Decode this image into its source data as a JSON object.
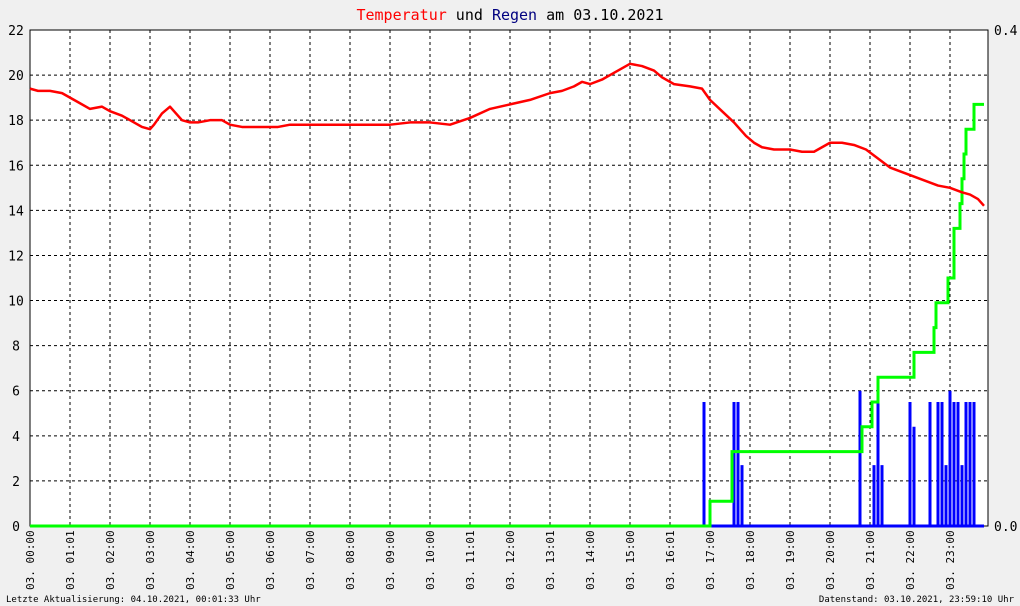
{
  "chart_data": {
    "type": "line",
    "title_parts": [
      {
        "text": "Temperatur",
        "color": "#ff0000"
      },
      {
        "text": " und ",
        "color": "#000000"
      },
      {
        "text": "Regen",
        "color": "#000080"
      },
      {
        "text": " am 03.10.2021",
        "color": "#000000"
      }
    ],
    "left_axis": {
      "ylim": [
        0,
        22
      ],
      "ticks": [
        "0",
        "2",
        "4",
        "6",
        "8",
        "10",
        "12",
        "14",
        "16",
        "18",
        "20",
        "22"
      ]
    },
    "right_axis": {
      "ylim": [
        0,
        0.4
      ],
      "ticks": [
        "0.0",
        "0.4"
      ]
    },
    "x_tick_labels": [
      "03. 00:00",
      "03. 01:01",
      "03. 02:00",
      "03. 03:00",
      "03. 04:00",
      "03. 05:00",
      "03. 06:00",
      "03. 07:00",
      "03. 08:00",
      "03. 09:00",
      "03. 10:00",
      "03. 11:01",
      "03. 12:00",
      "03. 13:01",
      "03. 14:00",
      "03. 15:00",
      "03. 16:01",
      "03. 17:00",
      "03. 18:00",
      "03. 19:00",
      "03. 20:00",
      "03. 21:00",
      "03. 22:00",
      "03. 23:00"
    ],
    "grid": true,
    "colors": {
      "temperature": "#ff0000",
      "rain_rate": "#0000ff",
      "rain_cumulative": "#00ff00",
      "grid": "#000000"
    },
    "temperature": {
      "x": [
        0,
        0.2,
        0.5,
        0.8,
        1.0,
        1.2,
        1.5,
        1.8,
        2.0,
        2.3,
        2.6,
        2.8,
        3.0,
        3.1,
        3.3,
        3.5,
        3.7,
        3.8,
        4.0,
        4.2,
        4.5,
        4.8,
        5.0,
        5.3,
        5.6,
        5.9,
        6.2,
        6.5,
        6.8,
        7.0,
        7.5,
        8.0,
        8.5,
        9.0,
        9.5,
        10.0,
        10.5,
        11.0,
        11.5,
        12.0,
        12.5,
        13.0,
        13.3,
        13.6,
        13.8,
        14.0,
        14.3,
        14.6,
        14.8,
        15.0,
        15.3,
        15.6,
        15.8,
        16.1,
        16.5,
        16.8,
        17.0,
        17.3,
        17.6,
        17.9,
        18.1,
        18.3,
        18.6,
        19.0,
        19.3,
        19.6,
        19.8,
        20.0,
        20.3,
        20.6,
        20.9,
        21.2,
        21.5,
        21.8,
        22.1,
        22.4,
        22.7,
        23.0,
        23.3,
        23.5,
        23.7,
        23.85
      ],
      "y": [
        19.4,
        19.3,
        19.3,
        19.2,
        19.0,
        18.8,
        18.5,
        18.6,
        18.4,
        18.2,
        17.9,
        17.7,
        17.6,
        17.8,
        18.3,
        18.6,
        18.2,
        18.0,
        17.9,
        17.9,
        18.0,
        18.0,
        17.8,
        17.7,
        17.7,
        17.7,
        17.7,
        17.8,
        17.8,
        17.8,
        17.8,
        17.8,
        17.8,
        17.8,
        17.9,
        17.9,
        17.8,
        18.1,
        18.5,
        18.7,
        18.9,
        19.2,
        19.3,
        19.5,
        19.7,
        19.6,
        19.8,
        20.1,
        20.3,
        20.5,
        20.4,
        20.2,
        19.9,
        19.6,
        19.5,
        19.4,
        18.9,
        18.4,
        17.9,
        17.3,
        17.0,
        16.8,
        16.7,
        16.7,
        16.6,
        16.6,
        16.8,
        17.0,
        17.0,
        16.9,
        16.7,
        16.3,
        15.9,
        15.7,
        15.5,
        15.3,
        15.1,
        15.0,
        14.8,
        14.7,
        14.5,
        14.2
      ]
    },
    "rain_cumulative": {
      "x": [
        0,
        16.85,
        17.0,
        17.5,
        17.55,
        20.75,
        20.8,
        21.0,
        21.05,
        21.2,
        22.0,
        22.1,
        22.6,
        22.65,
        22.9,
        22.95,
        23.1,
        23.2,
        23.25,
        23.3,
        23.35,
        23.4,
        23.5,
        23.6,
        23.85
      ],
      "y": [
        0,
        0,
        0.02,
        0.02,
        0.06,
        0.06,
        0.08,
        0.08,
        0.1,
        0.12,
        0.12,
        0.14,
        0.16,
        0.18,
        0.18,
        0.2,
        0.24,
        0.24,
        0.26,
        0.28,
        0.3,
        0.32,
        0.32,
        0.34,
        0.34
      ]
    },
    "rain_rate": {
      "x": [
        16.85,
        17.6,
        17.7,
        17.8,
        20.75,
        21.1,
        21.2,
        21.3,
        22.0,
        22.1,
        22.5,
        22.7,
        22.8,
        22.9,
        23.0,
        23.1,
        23.2,
        23.3,
        23.4,
        23.5,
        23.6
      ],
      "y": [
        5.5,
        5.5,
        5.5,
        2.7,
        6.0,
        2.7,
        5.5,
        2.7,
        5.5,
        4.4,
        5.5,
        5.5,
        5.5,
        2.7,
        6.0,
        5.5,
        5.5,
        2.7,
        5.5,
        5.5,
        5.5
      ]
    }
  },
  "footer": {
    "left": "Letzte Aktualisierung: 04.10.2021, 00:01:33 Uhr",
    "right": "Datenstand: 03.10.2021, 23:59:10 Uhr"
  }
}
